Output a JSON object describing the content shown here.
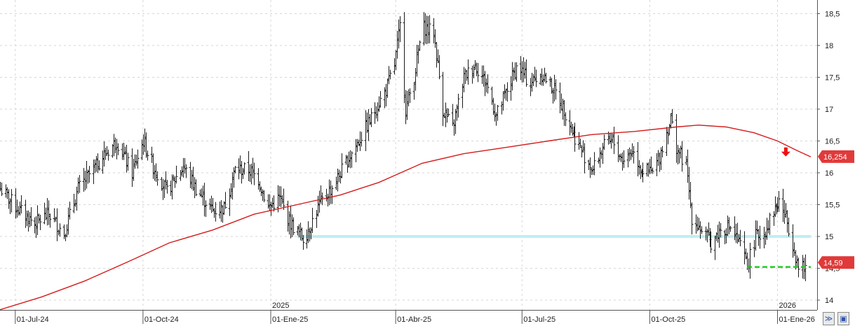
{
  "chart_data": {
    "type": "candlestick",
    "x_axis": {
      "tick_labels": [
        "01-Jul-24",
        "01-Oct-24",
        "01-Ene-25",
        "01-Abr-25",
        "01-Jul-25",
        "01-Oct-25",
        "01-Ene-26"
      ],
      "year_labels": [
        "2025",
        "2026"
      ],
      "range": [
        "2024-06-20",
        "2026-01-25"
      ]
    },
    "y_axis": {
      "tick_labels": [
        "14",
        "14,5",
        "15",
        "15,5",
        "16",
        "16,5",
        "17",
        "17,5",
        "18",
        "18,5"
      ],
      "ticks": [
        14,
        14.5,
        15,
        15.5,
        16,
        16.5,
        17,
        17.5,
        18,
        18.5
      ],
      "range": [
        13.85,
        18.65
      ],
      "position": "right"
    },
    "price_series_anchors": [
      [
        "2024-06-20",
        15.75
      ],
      [
        "2024-07-02",
        15.45
      ],
      [
        "2024-07-15",
        15.2
      ],
      [
        "2024-07-25",
        15.35
      ],
      [
        "2024-08-05",
        15.05
      ],
      [
        "2024-08-15",
        15.75
      ],
      [
        "2024-09-02",
        16.25
      ],
      [
        "2024-09-12",
        16.5
      ],
      [
        "2024-09-23",
        16.0
      ],
      [
        "2024-10-01",
        16.5
      ],
      [
        "2024-10-08",
        16.1
      ],
      [
        "2024-10-18",
        15.7
      ],
      [
        "2024-10-30",
        16.1
      ],
      [
        "2024-11-08",
        15.75
      ],
      [
        "2024-11-20",
        15.4
      ],
      [
        "2024-11-28",
        15.45
      ],
      [
        "2024-12-06",
        16.05
      ],
      [
        "2024-12-16",
        16.05
      ],
      [
        "2024-12-23",
        15.9
      ],
      [
        "2024-12-30",
        15.45
      ],
      [
        "2025-01-07",
        15.6
      ],
      [
        "2025-01-15",
        15.2
      ],
      [
        "2025-01-25",
        14.95
      ],
      [
        "2025-02-05",
        15.5
      ],
      [
        "2025-02-15",
        15.8
      ],
      [
        "2025-02-25",
        16.2
      ],
      [
        "2025-03-05",
        16.5
      ],
      [
        "2025-03-15",
        16.9
      ],
      [
        "2025-03-25",
        17.3
      ],
      [
        "2025-03-31",
        17.7
      ],
      [
        "2025-04-04",
        18.3
      ],
      [
        "2025-04-08",
        17.0
      ],
      [
        "2025-04-14",
        17.5
      ],
      [
        "2025-04-20",
        18.3
      ],
      [
        "2025-04-28",
        18.2
      ],
      [
        "2025-05-05",
        17.0
      ],
      [
        "2025-05-12",
        16.7
      ],
      [
        "2025-05-20",
        17.5
      ],
      [
        "2025-05-28",
        17.7
      ],
      [
        "2025-06-05",
        17.4
      ],
      [
        "2025-06-12",
        16.9
      ],
      [
        "2025-06-20",
        17.3
      ],
      [
        "2025-06-28",
        17.7
      ],
      [
        "2025-07-06",
        17.4
      ],
      [
        "2025-07-15",
        17.55
      ],
      [
        "2025-07-24",
        17.3
      ],
      [
        "2025-07-31",
        17.0
      ],
      [
        "2025-08-07",
        16.6
      ],
      [
        "2025-08-14",
        16.3
      ],
      [
        "2025-08-21",
        16.05
      ],
      [
        "2025-08-28",
        16.4
      ],
      [
        "2025-09-04",
        16.5
      ],
      [
        "2025-09-11",
        16.2
      ],
      [
        "2025-09-18",
        16.35
      ],
      [
        "2025-09-25",
        16.05
      ],
      [
        "2025-10-03",
        16.0
      ],
      [
        "2025-10-07",
        16.2
      ],
      [
        "2025-10-12",
        16.55
      ],
      [
        "2025-10-16",
        16.85
      ],
      [
        "2025-10-20",
        16.4
      ],
      [
        "2025-10-27",
        16.1
      ],
      [
        "2025-10-31",
        15.3
      ],
      [
        "2025-11-07",
        15.1
      ],
      [
        "2025-11-14",
        14.9
      ],
      [
        "2025-11-21",
        15.1
      ],
      [
        "2025-11-28",
        15.15
      ],
      [
        "2025-12-05",
        14.85
      ],
      [
        "2025-12-10",
        14.55
      ],
      [
        "2025-12-16",
        15.0
      ],
      [
        "2025-12-22",
        15.05
      ],
      [
        "2025-12-29",
        15.4
      ],
      [
        "2026-01-02",
        15.55
      ],
      [
        "2026-01-07",
        15.3
      ],
      [
        "2026-01-12",
        14.9
      ],
      [
        "2026-01-16",
        14.5
      ],
      [
        "2026-01-21",
        14.5
      ]
    ],
    "moving_average": {
      "color": "#d41c1c",
      "points": [
        [
          "2024-06-20",
          13.85
        ],
        [
          "2024-07-20",
          14.05
        ],
        [
          "2024-08-20",
          14.3
        ],
        [
          "2024-09-20",
          14.6
        ],
        [
          "2024-10-20",
          14.9
        ],
        [
          "2024-11-20",
          15.1
        ],
        [
          "2024-12-20",
          15.35
        ],
        [
          "2025-01-20",
          15.5
        ],
        [
          "2025-02-20",
          15.65
        ],
        [
          "2025-03-20",
          15.85
        ],
        [
          "2025-04-20",
          16.15
        ],
        [
          "2025-05-20",
          16.3
        ],
        [
          "2025-06-20",
          16.4
        ],
        [
          "2025-07-20",
          16.5
        ],
        [
          "2025-08-20",
          16.6
        ],
        [
          "2025-09-20",
          16.65
        ],
        [
          "2025-10-20",
          16.72
        ],
        [
          "2025-11-05",
          16.75
        ],
        [
          "2025-11-25",
          16.72
        ],
        [
          "2025-12-15",
          16.63
        ],
        [
          "2026-01-01",
          16.5
        ],
        [
          "2026-01-15",
          16.35
        ],
        [
          "2026-01-25",
          16.25
        ]
      ]
    },
    "last_values": {
      "moving_average": {
        "label": "16,254",
        "value": 16.254,
        "color": "#e03a3a"
      },
      "price": {
        "label": "14,59",
        "value": 14.59,
        "color": "#e03a3a"
      }
    },
    "annotations": {
      "support_line": {
        "value": 15.0,
        "from": "2025-01-20",
        "to": "2026-01-25",
        "color": "#bfeff3"
      },
      "breakdown_line": {
        "value": 14.52,
        "from": "2025-12-10",
        "to": "2026-01-25",
        "color": "#22cc22"
      },
      "down_arrow": {
        "date": "2026-01-07",
        "value": 16.3,
        "color": "#ee1111"
      }
    },
    "grid": true,
    "legend": "none"
  },
  "ui": {
    "corner_buttons": [
      {
        "icon": "double-chevron-icon",
        "glyph": "≫"
      },
      {
        "icon": "save-icon",
        "glyph": "▣"
      }
    ]
  }
}
